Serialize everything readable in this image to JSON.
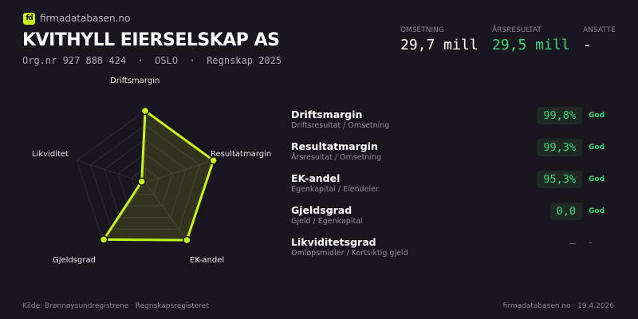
{
  "brand": {
    "logo_text": "fd",
    "site": "firmadatabasen.no",
    "accent": "#c6f31a"
  },
  "company": {
    "name": "KVITHYLL EIERSELSKAP AS",
    "meta": "Org.nr 927 888 424  ·  OSLO  ·  Regnskap 2025"
  },
  "kpis": [
    {
      "label": "OMSETNING",
      "value": "29,7 mill",
      "color": "#ffffff"
    },
    {
      "label": "ÅRSRESULTAT",
      "value": "29,5 mill",
      "color": "#3ed67a"
    },
    {
      "label": "ANSATTE",
      "value": "-",
      "color": "#ffffff"
    }
  ],
  "radar": {
    "axes": [
      "Driftsmargin",
      "Resultatmargin",
      "EK-andel",
      "Gjeldsgrad",
      "Likviditet"
    ],
    "scores": [
      1.0,
      1.0,
      0.99,
      0.98,
      0.0
    ],
    "rings": 5
  },
  "metrics": [
    {
      "title": "Driftsmargin",
      "formula": "Driftsresultat / Omsetning",
      "value": "99,8%",
      "status": "God"
    },
    {
      "title": "Resultatmargin",
      "formula": "Årsresultat / Omsetning",
      "value": "99,3%",
      "status": "God"
    },
    {
      "title": "EK-andel",
      "formula": "Egenkapital / Eiendeler",
      "value": "95,3%",
      "status": "God"
    },
    {
      "title": "Gjeldsgrad",
      "formula": "Gjeld / Egenkapital",
      "value": "0,0",
      "status": "God"
    },
    {
      "title": "Likviditetsgrad",
      "formula": "Omløpsmidler / Kortsiktig gjeld",
      "value": "–",
      "status": "–"
    }
  ],
  "footer": {
    "source": "Kilde: Brønnøysundregistrene · Regnskapsregisteret",
    "right": "firmadatabasen.no · 19.4.2026"
  }
}
